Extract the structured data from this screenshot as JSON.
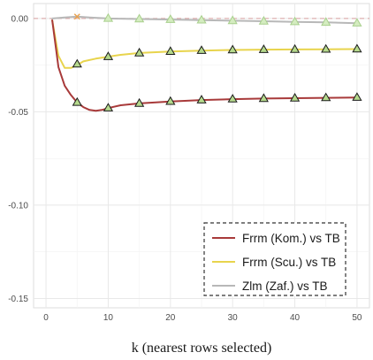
{
  "chart_data": {
    "type": "line",
    "title": "",
    "xlabel": "k (nearest rows selected)",
    "ylabel": "",
    "xlim": [
      -2,
      52
    ],
    "ylim": [
      -0.155,
      0.008
    ],
    "grid": true,
    "legend_position": "bottom-right",
    "x_ticks": [
      0,
      10,
      20,
      30,
      40,
      50
    ],
    "x_tick_labels": [
      "0",
      "10",
      "20",
      "30",
      "40",
      "50"
    ],
    "y_ticks": [
      0.0,
      -0.05,
      -0.1,
      -0.15
    ],
    "y_tick_labels": [
      "0.00",
      "-0.05",
      "-0.10",
      "-0.15"
    ],
    "reference_line": {
      "y": 0,
      "style": "dashed",
      "color": "#d9a0a0"
    },
    "series": [
      {
        "name": "Frrm (Kom.) vs TB",
        "color": "#a83a3a",
        "marker_fill": "#b5d98c",
        "curve": {
          "x": [
            1,
            2,
            3,
            4,
            5,
            6,
            7,
            8,
            9,
            10,
            12,
            15,
            20,
            25,
            30,
            35,
            40,
            45,
            50
          ],
          "y": [
            -0.001,
            -0.026,
            -0.036,
            -0.041,
            -0.045,
            -0.0475,
            -0.049,
            -0.0495,
            -0.049,
            -0.048,
            -0.0465,
            -0.0455,
            -0.0445,
            -0.0437,
            -0.0432,
            -0.0429,
            -0.0427,
            -0.0425,
            -0.0423
          ]
        },
        "markers": {
          "x": [
            5,
            10,
            15,
            20,
            25,
            30,
            35,
            40,
            45,
            50
          ],
          "y": [
            -0.045,
            -0.048,
            -0.0455,
            -0.0445,
            -0.0437,
            -0.0432,
            -0.0429,
            -0.0427,
            -0.0425,
            -0.0423
          ]
        }
      },
      {
        "name": "Frrm (Scu.) vs TB",
        "color": "#e8d44d",
        "marker_fill": "#b5d98c",
        "curve": {
          "x": [
            1,
            2,
            3,
            4,
            5,
            6,
            8,
            10,
            12,
            15,
            20,
            25,
            30,
            35,
            40,
            45,
            50
          ],
          "y": [
            -0.001,
            -0.02,
            -0.0265,
            -0.0265,
            -0.025,
            -0.023,
            -0.0215,
            -0.0205,
            -0.0195,
            -0.0185,
            -0.0177,
            -0.0172,
            -0.0169,
            -0.0167,
            -0.0166,
            -0.0165,
            -0.0164
          ]
        },
        "markers": {
          "x": [
            5,
            10,
            15,
            20,
            25,
            30,
            35,
            40,
            45,
            50
          ],
          "y": [
            -0.0245,
            -0.0205,
            -0.0185,
            -0.0177,
            -0.0172,
            -0.0169,
            -0.0167,
            -0.0166,
            -0.0165,
            -0.0164
          ]
        }
      },
      {
        "name": "Zlm (Zaf.) vs TB",
        "color": "#b8b8b8",
        "marker_fill": "#d4ecc0",
        "curve": {
          "x": [
            1,
            3,
            5,
            7,
            10,
            15,
            20,
            25,
            30,
            35,
            40,
            45,
            50
          ],
          "y": [
            0.0,
            0.0005,
            0.001,
            0.0005,
            0.0,
            -0.0003,
            -0.0006,
            -0.0009,
            -0.0012,
            -0.0015,
            -0.0018,
            -0.0021,
            -0.0025
          ]
        },
        "markers": {
          "x": [
            10,
            15,
            20,
            25,
            30,
            35,
            40,
            45,
            50
          ],
          "y": [
            0.0,
            -0.0003,
            -0.0006,
            -0.0009,
            -0.0012,
            -0.0015,
            -0.0018,
            -0.0021,
            -0.0025
          ]
        },
        "extra_marker": {
          "x": 5,
          "y": 0.001,
          "symbol": "x",
          "color": "#e8a04d"
        }
      }
    ]
  }
}
